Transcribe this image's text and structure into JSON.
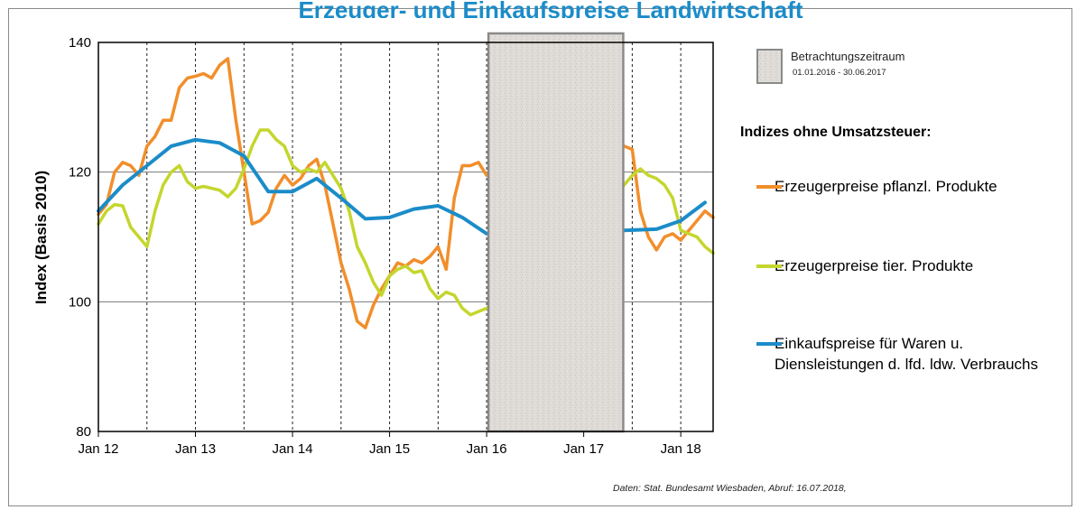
{
  "title": "Erzeuger- und Einkaufspreise Landwirtschaft",
  "legend": {
    "box_label": "Betrachtungszeitraum",
    "box_range": "01.01.2016  - 30.06.2017",
    "heading": "Indizes ohne Umsatzsteuer:",
    "items": [
      {
        "label": "Erzeugerpreise pflanzl. Produkte",
        "color": "#f28e2b"
      },
      {
        "label": "Erzeugerpreise tier. Produkte",
        "color": "#c4d62d"
      },
      {
        "label": "Einkaufspreise für Waren u. Diensleistungen d. lfd. ldw. Verbrauchs",
        "color": "#1b8cc9"
      }
    ]
  },
  "source": "Daten: Stat. Bundesamt Wiesbaden,  Abruf: 16.07.2018,",
  "chart_data": {
    "type": "line",
    "ylabel": "Index (Basis 2010)",
    "xlabel": "",
    "ylim": [
      80,
      140
    ],
    "yticks": [
      80,
      100,
      120,
      140
    ],
    "xlim": [
      "2012-01",
      "2018-05"
    ],
    "xticks": [
      {
        "label": "Jan 12",
        "date": "2012-01"
      },
      {
        "label": "Jan 13",
        "date": "2013-01"
      },
      {
        "label": "Jan 14",
        "date": "2014-01"
      },
      {
        "label": "Jan 15",
        "date": "2015-01"
      },
      {
        "label": "Jan 16",
        "date": "2016-01"
      },
      {
        "label": "Jan 17",
        "date": "2017-01"
      },
      {
        "label": "Jan 18",
        "date": "2018-01"
      }
    ],
    "gridlines": {
      "horizontal": true,
      "vertical_quarterly": true
    },
    "hidden_period": {
      "start": "2016-01",
      "end": "2017-06"
    },
    "series": [
      {
        "name": "Erzeugerpreise pflanzl. Produkte",
        "color": "#f28e2b",
        "points": [
          [
            "2012-01",
            113.5
          ],
          [
            "2012-02",
            115
          ],
          [
            "2012-03",
            120
          ],
          [
            "2012-04",
            121.5
          ],
          [
            "2012-05",
            121
          ],
          [
            "2012-06",
            119.5
          ],
          [
            "2012-07",
            124
          ],
          [
            "2012-08",
            125.5
          ],
          [
            "2012-09",
            128
          ],
          [
            "2012-10",
            128
          ],
          [
            "2012-11",
            133
          ],
          [
            "2012-12",
            134.5
          ],
          [
            "2013-01",
            134.8
          ],
          [
            "2013-02",
            135.2
          ],
          [
            "2013-03",
            134.5
          ],
          [
            "2013-04",
            136.5
          ],
          [
            "2013-05",
            137.5
          ],
          [
            "2013-06",
            128
          ],
          [
            "2013-07",
            120
          ],
          [
            "2013-08",
            112
          ],
          [
            "2013-09",
            112.5
          ],
          [
            "2013-10",
            113.8
          ],
          [
            "2013-11",
            117.5
          ],
          [
            "2013-12",
            119.5
          ],
          [
            "2014-01",
            118
          ],
          [
            "2014-02",
            119
          ],
          [
            "2014-03",
            121
          ],
          [
            "2014-04",
            122
          ],
          [
            "2014-05",
            118
          ],
          [
            "2014-06",
            112
          ],
          [
            "2014-07",
            106
          ],
          [
            "2014-08",
            102
          ],
          [
            "2014-09",
            97
          ],
          [
            "2014-10",
            96
          ],
          [
            "2014-11",
            99.5
          ],
          [
            "2014-12",
            102
          ],
          [
            "2015-01",
            104
          ],
          [
            "2015-02",
            106
          ],
          [
            "2015-03",
            105.5
          ],
          [
            "2015-04",
            106.5
          ],
          [
            "2015-05",
            106
          ],
          [
            "2015-06",
            107
          ],
          [
            "2015-07",
            108.5
          ],
          [
            "2015-08",
            105
          ],
          [
            "2015-09",
            116
          ],
          [
            "2015-10",
            121
          ],
          [
            "2015-11",
            121
          ],
          [
            "2015-12",
            121.5
          ],
          [
            "2016-01",
            119.5
          ],
          [
            "2017-06",
            124
          ],
          [
            "2017-07",
            123.5
          ],
          [
            "2017-08",
            114
          ],
          [
            "2017-09",
            110
          ],
          [
            "2017-10",
            108
          ],
          [
            "2017-11",
            110
          ],
          [
            "2017-12",
            110.5
          ],
          [
            "2018-01",
            109.5
          ],
          [
            "2018-02",
            111
          ],
          [
            "2018-03",
            112.5
          ],
          [
            "2018-04",
            114
          ],
          [
            "2018-05",
            113
          ]
        ]
      },
      {
        "name": "Erzeugerpreise tier. Produkte",
        "color": "#c4d62d",
        "points": [
          [
            "2012-01",
            112
          ],
          [
            "2012-02",
            114
          ],
          [
            "2012-03",
            115
          ],
          [
            "2012-04",
            114.8
          ],
          [
            "2012-05",
            111.5
          ],
          [
            "2012-06",
            110
          ],
          [
            "2012-07",
            108.5
          ],
          [
            "2012-08",
            114
          ],
          [
            "2012-09",
            118
          ],
          [
            "2012-10",
            120
          ],
          [
            "2012-11",
            121
          ],
          [
            "2012-12",
            118.5
          ],
          [
            "2013-01",
            117.5
          ],
          [
            "2013-02",
            117.8
          ],
          [
            "2013-03",
            117.5
          ],
          [
            "2013-04",
            117.2
          ],
          [
            "2013-05",
            116.2
          ],
          [
            "2013-06",
            117.5
          ],
          [
            "2013-07",
            120.5
          ],
          [
            "2013-08",
            124
          ],
          [
            "2013-09",
            126.5
          ],
          [
            "2013-10",
            126.5
          ],
          [
            "2013-11",
            125
          ],
          [
            "2013-12",
            124
          ],
          [
            "2014-01",
            121
          ],
          [
            "2014-02",
            120
          ],
          [
            "2014-03",
            120.5
          ],
          [
            "2014-04",
            120
          ],
          [
            "2014-05",
            121.5
          ],
          [
            "2014-06",
            119.5
          ],
          [
            "2014-07",
            117.5
          ],
          [
            "2014-08",
            114
          ],
          [
            "2014-09",
            108.5
          ],
          [
            "2014-10",
            106
          ],
          [
            "2014-11",
            103
          ],
          [
            "2014-12",
            101
          ],
          [
            "2015-01",
            104
          ],
          [
            "2015-02",
            105
          ],
          [
            "2015-03",
            105.5
          ],
          [
            "2015-04",
            104.5
          ],
          [
            "2015-05",
            104.8
          ],
          [
            "2015-06",
            102
          ],
          [
            "2015-07",
            100.5
          ],
          [
            "2015-08",
            101.5
          ],
          [
            "2015-09",
            101
          ],
          [
            "2015-10",
            99
          ],
          [
            "2015-11",
            98
          ],
          [
            "2015-12",
            98.5
          ],
          [
            "2016-01",
            99
          ],
          [
            "2017-06",
            118
          ],
          [
            "2017-07",
            119.5
          ],
          [
            "2017-08",
            120.5
          ],
          [
            "2017-09",
            119.5
          ],
          [
            "2017-10",
            119
          ],
          [
            "2017-11",
            118
          ],
          [
            "2017-12",
            116
          ],
          [
            "2018-01",
            111
          ],
          [
            "2018-02",
            110.5
          ],
          [
            "2018-03",
            110
          ],
          [
            "2018-04",
            108.5
          ],
          [
            "2018-05",
            107.5
          ]
        ]
      },
      {
        "name": "Einkaufspreise für Waren u. Diensleistungen d. lfd. ldw. Verbrauchs",
        "color": "#1b8cc9",
        "points": [
          [
            "2012-01",
            114
          ],
          [
            "2012-04",
            118
          ],
          [
            "2012-07",
            121
          ],
          [
            "2012-10",
            124
          ],
          [
            "2013-01",
            125
          ],
          [
            "2013-04",
            124.5
          ],
          [
            "2013-07",
            122.5
          ],
          [
            "2013-10",
            117
          ],
          [
            "2014-01",
            117
          ],
          [
            "2014-04",
            119
          ],
          [
            "2014-07",
            116
          ],
          [
            "2014-10",
            112.8
          ],
          [
            "2015-01",
            113
          ],
          [
            "2015-04",
            114.3
          ],
          [
            "2015-07",
            114.8
          ],
          [
            "2015-10",
            113
          ],
          [
            "2016-01",
            110.5
          ],
          [
            "2017-06",
            111
          ],
          [
            "2017-10",
            111.2
          ],
          [
            "2018-01",
            112.5
          ],
          [
            "2018-04",
            115.3
          ]
        ]
      }
    ]
  }
}
